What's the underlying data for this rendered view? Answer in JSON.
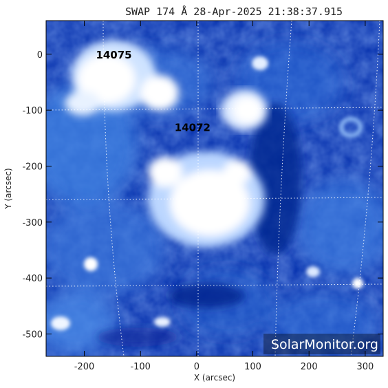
{
  "title": "SWAP 174 Å 28-Apr-2025 21:38:37.915",
  "xlabel": "X (arcsec)",
  "ylabel": "Y (arcsec)",
  "x_ticks": [
    -200,
    -100,
    0,
    100,
    200,
    300
  ],
  "y_ticks": [
    0,
    -100,
    -200,
    -300,
    -400,
    -500
  ],
  "x_range": [
    -268,
    332
  ],
  "y_range": [
    -540,
    60
  ],
  "regions": [
    {
      "label": "14075",
      "x": -145,
      "y": 0
    },
    {
      "label": "14072",
      "x": -5,
      "y": -130
    }
  ],
  "watermark": "SolarMonitor.org",
  "colors": {
    "background": "#0a35b0",
    "bright": "#ffffff",
    "mid": "#4a8fe6",
    "frame": "#000000"
  }
}
